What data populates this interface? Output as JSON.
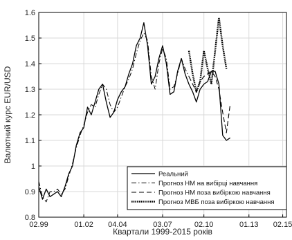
{
  "chart_data": {
    "type": "line",
    "xlabel": "Квартали 1999-2015 років",
    "ylabel": "Валютний курс EUR/USD",
    "ylim": [
      0.8,
      1.6
    ],
    "y_ticks": [
      0.8,
      0.9,
      1.0,
      1.1,
      1.2,
      1.3,
      1.4,
      1.5,
      1.6
    ],
    "y_tick_labels": [
      "0.8",
      "0.9",
      "1",
      "1.1",
      "1.2",
      "1.3",
      "1.4",
      "1.5",
      "1.6"
    ],
    "x_range_quarters": [
      0,
      66
    ],
    "x_tick_quarters": [
      0,
      12,
      21,
      33,
      44,
      56,
      65
    ],
    "x_tick_labels": [
      "02.99",
      "01.02",
      "04.04",
      "03.07",
      "02.10",
      "01.13",
      "02.15"
    ],
    "grid": true,
    "legend_position": "bottom-right",
    "series": [
      {
        "name": "Реальний",
        "style": "solid",
        "color": "#000000",
        "points": [
          [
            0,
            0.92
          ],
          [
            1,
            0.87
          ],
          [
            2,
            0.91
          ],
          [
            3,
            0.88
          ],
          [
            4,
            0.89
          ],
          [
            5,
            0.9
          ],
          [
            6,
            0.88
          ],
          [
            7,
            0.92
          ],
          [
            8,
            0.97
          ],
          [
            9,
            1.0
          ],
          [
            10,
            1.08
          ],
          [
            11,
            1.13
          ],
          [
            12,
            1.15
          ],
          [
            13,
            1.23
          ],
          [
            14,
            1.2
          ],
          [
            15,
            1.25
          ],
          [
            16,
            1.3
          ],
          [
            17,
            1.32
          ],
          [
            18,
            1.25
          ],
          [
            19,
            1.19
          ],
          [
            20,
            1.21
          ],
          [
            21,
            1.26
          ],
          [
            22,
            1.29
          ],
          [
            23,
            1.31
          ],
          [
            24,
            1.36
          ],
          [
            25,
            1.4
          ],
          [
            26,
            1.47
          ],
          [
            27,
            1.5
          ],
          [
            28,
            1.56
          ],
          [
            29,
            1.47
          ],
          [
            30,
            1.32
          ],
          [
            31,
            1.35
          ],
          [
            32,
            1.42
          ],
          [
            33,
            1.47
          ],
          [
            34,
            1.4
          ],
          [
            35,
            1.28
          ],
          [
            36,
            1.29
          ],
          [
            37,
            1.37
          ],
          [
            38,
            1.42
          ],
          [
            39,
            1.36
          ],
          [
            40,
            1.32
          ],
          [
            41,
            1.29
          ],
          [
            42,
            1.25
          ],
          [
            43,
            1.3
          ],
          [
            44,
            1.32
          ],
          [
            45,
            1.33
          ],
          [
            46,
            1.37
          ],
          [
            47,
            1.37
          ],
          [
            48,
            1.32
          ],
          [
            49,
            1.12
          ],
          [
            50,
            1.1
          ],
          [
            51,
            1.11
          ]
        ]
      },
      {
        "name": "Прогноз НМ на вибірці навчання",
        "style": "dashdot",
        "color": "#000000",
        "points": [
          [
            0,
            0.94
          ],
          [
            1,
            0.88
          ],
          [
            2,
            0.86
          ],
          [
            3,
            0.9
          ],
          [
            4,
            0.9
          ],
          [
            5,
            0.91
          ],
          [
            6,
            0.89
          ],
          [
            7,
            0.91
          ],
          [
            8,
            0.96
          ],
          [
            9,
            1.01
          ],
          [
            10,
            1.07
          ],
          [
            11,
            1.12
          ],
          [
            12,
            1.16
          ],
          [
            13,
            1.21
          ],
          [
            14,
            1.24
          ],
          [
            15,
            1.23
          ],
          [
            16,
            1.28
          ],
          [
            17,
            1.32
          ],
          [
            18,
            1.3
          ],
          [
            19,
            1.24
          ],
          [
            20,
            1.21
          ],
          [
            21,
            1.23
          ],
          [
            22,
            1.27
          ],
          [
            23,
            1.31
          ],
          [
            24,
            1.34
          ],
          [
            25,
            1.38
          ],
          [
            26,
            1.44
          ],
          [
            27,
            1.49
          ],
          [
            28,
            1.52
          ],
          [
            29,
            1.49
          ],
          [
            30,
            1.35
          ],
          [
            31,
            1.3
          ],
          [
            32,
            1.4
          ],
          [
            33,
            1.46
          ],
          [
            34,
            1.42
          ],
          [
            35,
            1.3
          ],
          [
            36,
            1.31
          ],
          [
            37,
            1.36
          ],
          [
            38,
            1.42
          ],
          [
            39,
            1.38
          ],
          [
            40,
            1.35
          ]
        ]
      },
      {
        "name": "Прогноз НМ поза вибіркою навчання",
        "style": "dashed",
        "color": "#000000",
        "points": [
          [
            40,
            1.35
          ],
          [
            41,
            1.32
          ],
          [
            42,
            1.29
          ],
          [
            43,
            1.33
          ],
          [
            44,
            1.35
          ],
          [
            45,
            1.36
          ],
          [
            46,
            1.37
          ],
          [
            47,
            1.35
          ],
          [
            48,
            1.3
          ],
          [
            49,
            1.21
          ],
          [
            50,
            1.13
          ],
          [
            51,
            1.24
          ]
        ]
      },
      {
        "name": "Прогноз МВБ поза вибіркою навчання",
        "style": "dotted",
        "color": "#000000",
        "points": [
          [
            40,
            1.45
          ],
          [
            41,
            1.36
          ],
          [
            42,
            1.29
          ],
          [
            43,
            1.33
          ],
          [
            44,
            1.45
          ],
          [
            45,
            1.38
          ],
          [
            46,
            1.32
          ],
          [
            47,
            1.45
          ],
          [
            48,
            1.58
          ],
          [
            49,
            1.47
          ],
          [
            50,
            1.38
          ]
        ]
      }
    ]
  }
}
